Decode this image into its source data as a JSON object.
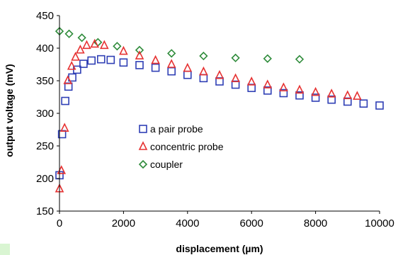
{
  "chart_data": {
    "type": "scatter",
    "title": "",
    "xlabel": "displacement (µm)",
    "ylabel": "output voltage (mV)",
    "xlim": [
      0,
      10000
    ],
    "ylim": [
      150,
      450
    ],
    "xticks": [
      0,
      2000,
      4000,
      6000,
      8000,
      10000
    ],
    "yticks": [
      150,
      200,
      250,
      300,
      350,
      400,
      450
    ],
    "grid": false,
    "legend_position": "center-left",
    "series": [
      {
        "name": "a pair  probe",
        "marker": "square",
        "color": "#2f3fb5",
        "anchors": [
          [
            0,
            205
          ],
          [
            80,
            268
          ],
          [
            180,
            319
          ],
          [
            280,
            341
          ],
          [
            400,
            355
          ],
          [
            550,
            367
          ],
          [
            750,
            376
          ],
          [
            1000,
            381
          ],
          [
            1300,
            383
          ],
          [
            1600,
            382
          ],
          [
            2000,
            378
          ],
          [
            3000,
            370
          ],
          [
            4000,
            359
          ],
          [
            5000,
            349
          ],
          [
            6000,
            339
          ],
          [
            7000,
            331
          ],
          [
            8000,
            324
          ],
          [
            9000,
            318
          ],
          [
            10000,
            312
          ]
        ],
        "x": [
          0,
          80,
          180,
          280,
          400,
          550,
          750,
          1000,
          1300,
          1600,
          2000,
          2500,
          3000,
          3500,
          4000,
          4500,
          5000,
          5500,
          6000,
          6500,
          7000,
          7500,
          8000,
          8500,
          9000,
          9500,
          10000
        ]
      },
      {
        "name": "concentric probe",
        "marker": "triangle",
        "color": "#e63232",
        "anchors": [
          [
            0,
            184
          ],
          [
            60,
            212
          ],
          [
            160,
            277
          ],
          [
            260,
            350
          ],
          [
            380,
            372
          ],
          [
            500,
            386
          ],
          [
            650,
            397
          ],
          [
            850,
            404
          ],
          [
            1100,
            406
          ],
          [
            1400,
            404
          ],
          [
            2000,
            395
          ],
          [
            3000,
            381
          ],
          [
            4000,
            369
          ],
          [
            5000,
            358
          ],
          [
            6000,
            348
          ],
          [
            7000,
            339
          ],
          [
            8000,
            332
          ],
          [
            9000,
            327
          ],
          [
            9300,
            326
          ]
        ],
        "x": [
          0,
          60,
          160,
          260,
          380,
          500,
          650,
          850,
          1100,
          1400,
          2000,
          2500,
          3000,
          3500,
          4000,
          4500,
          5000,
          5500,
          6000,
          6500,
          7000,
          7500,
          8000,
          8500,
          9000,
          9300
        ]
      },
      {
        "name": "coupler",
        "marker": "diamond",
        "color": "#2e8b3a",
        "anchors": [
          [
            0,
            426
          ],
          [
            300,
            422
          ],
          [
            700,
            416
          ],
          [
            1200,
            409
          ],
          [
            1800,
            403
          ],
          [
            2500,
            397
          ],
          [
            3500,
            392
          ],
          [
            4500,
            388
          ],
          [
            5500,
            385
          ],
          [
            6500,
            384
          ],
          [
            7500,
            383
          ]
        ],
        "x": [
          0,
          300,
          700,
          1200,
          1800,
          2500,
          3500,
          4500,
          5500,
          6500,
          7500
        ]
      }
    ]
  }
}
